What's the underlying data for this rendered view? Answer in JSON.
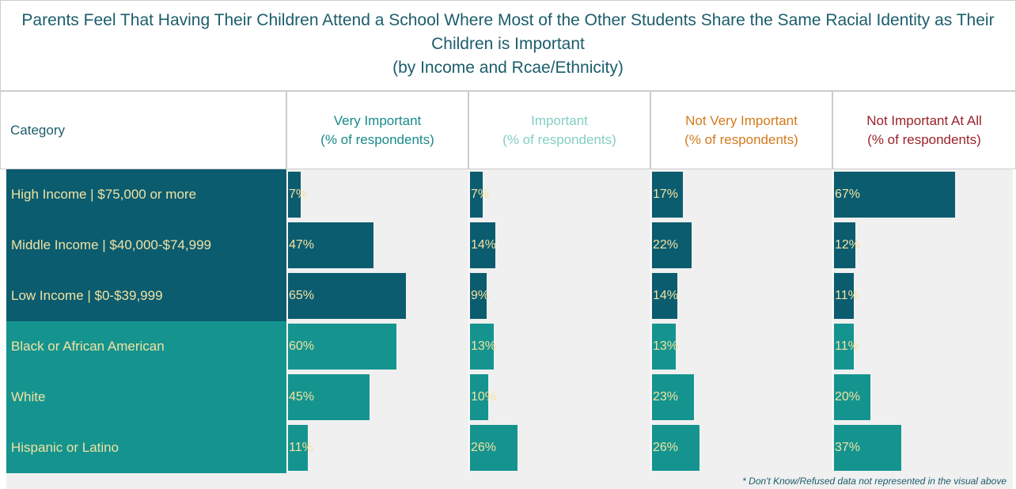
{
  "chart_data": {
    "type": "bar",
    "title": "Parents  Feel That Having Their Children Attend a School Where Most of the Other Students Share the Same Racial Identity as Their Children is Important",
    "subtitle": "(by Income and Rcae/Ethnicity)",
    "category_header": "Category",
    "unit_label": "(% of respondents)",
    "categories": [
      "High Income | $75,000 or more",
      "Middle Income | $40,000-$74,999",
      "Low Income | $0-$39,999",
      "Black or African American",
      "White",
      "Hispanic or Latino"
    ],
    "category_colors": [
      "#0b5c6f",
      "#0b5c6f",
      "#0b5c6f",
      "#15948f",
      "#15948f",
      "#15948f"
    ],
    "xlim": [
      0,
      100
    ],
    "series": [
      {
        "name": "Very Important",
        "color": "#1a8a8a",
        "values": [
          7,
          47,
          65,
          60,
          45,
          11
        ],
        "value_labels": [
          "7%",
          "47%",
          "65%",
          "60%",
          "45%",
          "11%"
        ]
      },
      {
        "name": "Important",
        "color": "#84cfc2",
        "values": [
          7,
          14,
          9,
          13,
          10,
          26
        ],
        "value_labels": [
          "7%",
          "14%",
          "9%",
          "13%",
          "10%",
          "26%"
        ]
      },
      {
        "name": "Not Very Important",
        "color": "#d37a1c",
        "values": [
          17,
          22,
          14,
          13,
          23,
          26
        ],
        "value_labels": [
          "17%",
          "22%",
          "14%",
          "13%",
          "23%",
          "26%"
        ]
      },
      {
        "name": "Not Important At All",
        "color": "#9b2228",
        "values": [
          67,
          12,
          11,
          11,
          20,
          37
        ],
        "value_labels": [
          "67%",
          "12%",
          "11%",
          "11%",
          "20%",
          "37%"
        ]
      }
    ],
    "footnote": "* Don't Know/Refused data not represented in the visual above"
  }
}
